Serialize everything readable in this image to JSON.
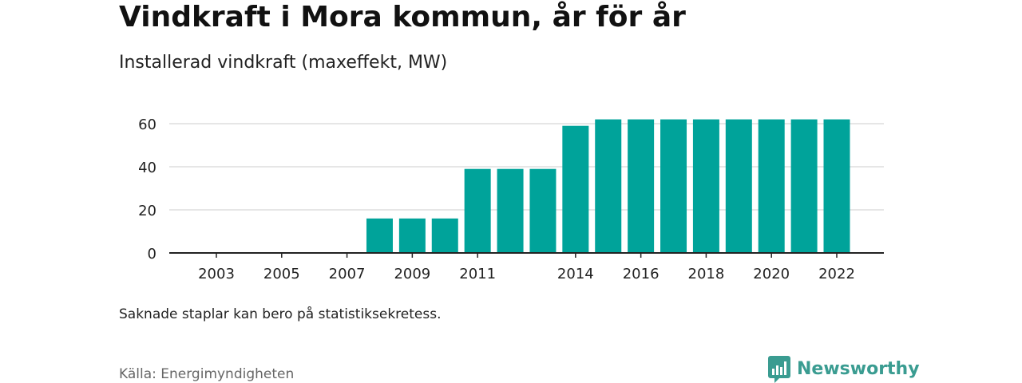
{
  "header": {
    "title": "Vindkraft i Mora kommun, år för år",
    "subtitle": "Installerad vindkraft (maxeffekt, MW)"
  },
  "footer": {
    "note": "Saknade staplar kan bero på statistiksekretess.",
    "source": "Källa: Energimyndigheten",
    "brand": "Newsworthy"
  },
  "colors": {
    "bar": "#00a39a",
    "brand": "#3a9c91",
    "grid": "#dddddd",
    "axis": "#222222",
    "text": "#222222"
  },
  "icons": {
    "brand_logo": "bar-chart-speech-bubble-icon"
  },
  "chart_data": {
    "type": "bar",
    "title": "Vindkraft i Mora kommun, år för år",
    "subtitle": "Installerad vindkraft (maxeffekt, MW)",
    "xlabel": "",
    "ylabel": "",
    "x": [
      2003,
      2004,
      2005,
      2006,
      2007,
      2008,
      2009,
      2010,
      2011,
      2012,
      2013,
      2014,
      2015,
      2016,
      2017,
      2018,
      2019,
      2020,
      2021,
      2022
    ],
    "values": [
      0,
      0,
      0,
      0,
      0,
      16,
      16,
      16,
      39,
      39,
      39,
      59,
      62,
      62,
      62,
      62,
      62,
      62,
      62,
      62
    ],
    "xtick_labels": [
      "2003",
      "2005",
      "2007",
      "2009",
      "2011",
      "2014",
      "2016",
      "2018",
      "2020",
      "2022"
    ],
    "yticks": [
      0,
      20,
      40,
      60
    ],
    "ylim": [
      0,
      65
    ],
    "grid": true,
    "legend": "none"
  }
}
